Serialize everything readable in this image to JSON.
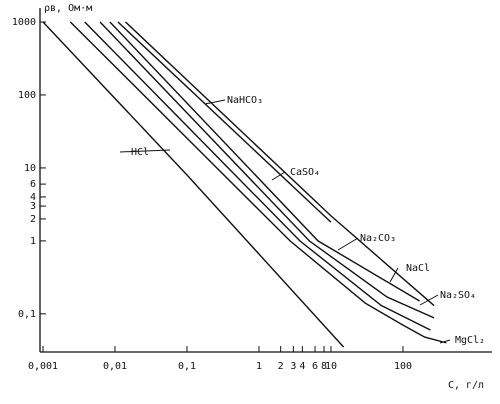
{
  "chart_data": {
    "type": "line",
    "x_label": "C, г/л",
    "y_label": "ρв, Ом·м",
    "log_x": true,
    "log_y": true,
    "grid": false,
    "xlim": [
      0.001,
      1000
    ],
    "ylim": [
      0.03,
      1000
    ],
    "xticks": [
      {
        "value": 0.001,
        "label": "0,001"
      },
      {
        "value": 0.01,
        "label": "0,01"
      },
      {
        "value": 0.1,
        "label": "0,1"
      },
      1,
      2,
      3,
      4,
      6,
      8,
      10,
      100
    ],
    "yticks": [
      1000,
      100,
      10,
      6,
      4,
      3,
      2,
      1,
      {
        "value": 0.1,
        "label": "0,1"
      }
    ],
    "series": [
      {
        "name": "HCl",
        "color": "#111111",
        "x": [
          0.001,
          0.1,
          15
        ],
        "values": [
          1000,
          8,
          0.035
        ]
      },
      {
        "name": "MgCl₂",
        "color": "#111111",
        "x": [
          0.0024,
          2.7,
          30,
          100,
          200,
          400
        ],
        "values": [
          1000,
          1,
          0.14,
          0.07,
          0.048,
          0.04
        ]
      },
      {
        "name": "Na₂SO₄",
        "color": "#111111",
        "x": [
          0.0038,
          3.7,
          50,
          240
        ],
        "values": [
          1000,
          1,
          0.13,
          0.06
        ]
      },
      {
        "name": "NaCl",
        "color": "#111111",
        "x": [
          0.0062,
          5,
          60,
          270
        ],
        "values": [
          1000,
          1,
          0.17,
          0.088
        ]
      },
      {
        "name": "Na₂CO₃",
        "color": "#111111",
        "x": [
          0.0085,
          6.6,
          170
        ],
        "values": [
          1000,
          1,
          0.15
        ]
      },
      {
        "name": "CaSO₄",
        "color": "#111111",
        "x": [
          0.011,
          10
        ],
        "values": [
          1000,
          1.8
        ]
      },
      {
        "name": "NaHCO₃",
        "color": "#111111",
        "x": [
          0.014,
          10,
          270
        ],
        "values": [
          1000,
          2.2,
          0.13
        ]
      }
    ]
  }
}
